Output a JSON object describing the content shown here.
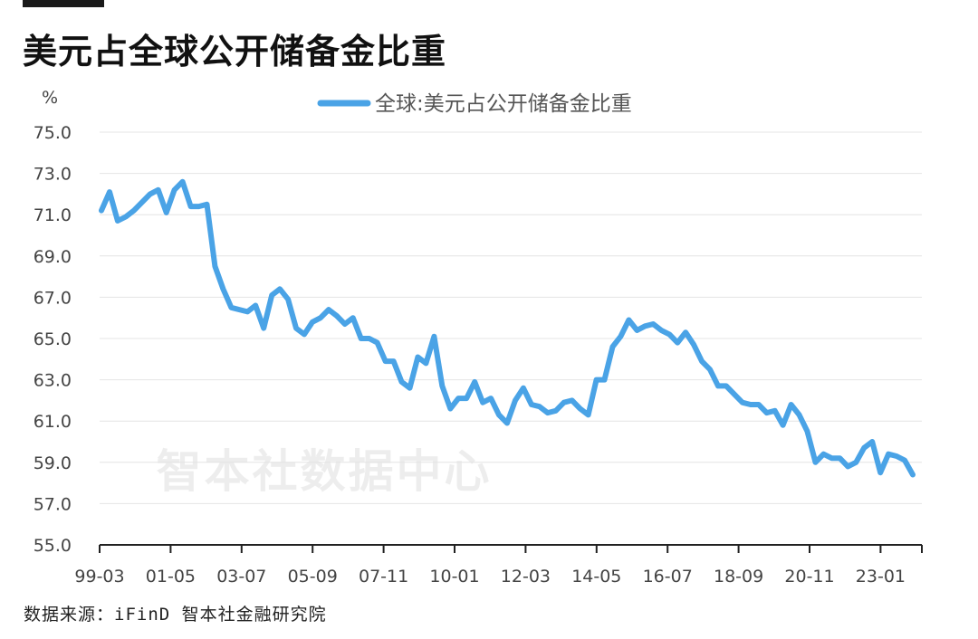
{
  "header": {
    "title": "美元占全球公开储备金比重"
  },
  "footer": {
    "source": "数据来源：iFinD 智本社金融研究院"
  },
  "watermark": "智本社数据中心",
  "chart_data": {
    "type": "line",
    "title": "美元占全球公开储备金比重",
    "ylabel": "%",
    "xlabel": "",
    "ylim": [
      55.0,
      75.0
    ],
    "yticks": [
      "75.0",
      "73.0",
      "71.0",
      "69.0",
      "67.0",
      "65.0",
      "63.0",
      "61.0",
      "59.0",
      "57.0",
      "55.0"
    ],
    "xticks": [
      "99-03",
      "01-05",
      "03-07",
      "05-09",
      "07-11",
      "10-01",
      "12-03",
      "14-05",
      "16-07",
      "18-09",
      "20-11",
      "23-01"
    ],
    "grid": true,
    "legend": "top-center",
    "line_color": "#4aa3e6",
    "series": [
      {
        "name": "全球:美元占公开储备金比重",
        "values": [
          71.2,
          72.1,
          70.7,
          70.9,
          71.2,
          71.6,
          72.0,
          72.2,
          71.1,
          72.2,
          72.6,
          71.4,
          71.4,
          71.5,
          68.5,
          67.4,
          66.5,
          66.4,
          66.3,
          66.6,
          65.5,
          67.1,
          67.4,
          66.9,
          65.5,
          65.2,
          65.8,
          66.0,
          66.4,
          66.1,
          65.7,
          66.0,
          65.0,
          65.0,
          64.8,
          63.9,
          63.9,
          62.9,
          62.6,
          64.1,
          63.8,
          65.1,
          62.7,
          61.6,
          62.1,
          62.1,
          62.9,
          61.9,
          62.1,
          61.3,
          60.9,
          62.0,
          62.6,
          61.8,
          61.7,
          61.4,
          61.5,
          61.9,
          62.0,
          61.6,
          61.3,
          63.0,
          63.0,
          64.6,
          65.1,
          65.9,
          65.4,
          65.6,
          65.7,
          65.4,
          65.2,
          64.8,
          65.3,
          64.7,
          63.9,
          63.5,
          62.7,
          62.7,
          62.3,
          61.9,
          61.8,
          61.8,
          61.4,
          61.5,
          60.8,
          61.8,
          61.3,
          60.5,
          59.0,
          59.4,
          59.2,
          59.2,
          58.8,
          59.0,
          59.7,
          60.0,
          58.5,
          59.4,
          59.3,
          59.1,
          58.4
        ]
      }
    ]
  }
}
